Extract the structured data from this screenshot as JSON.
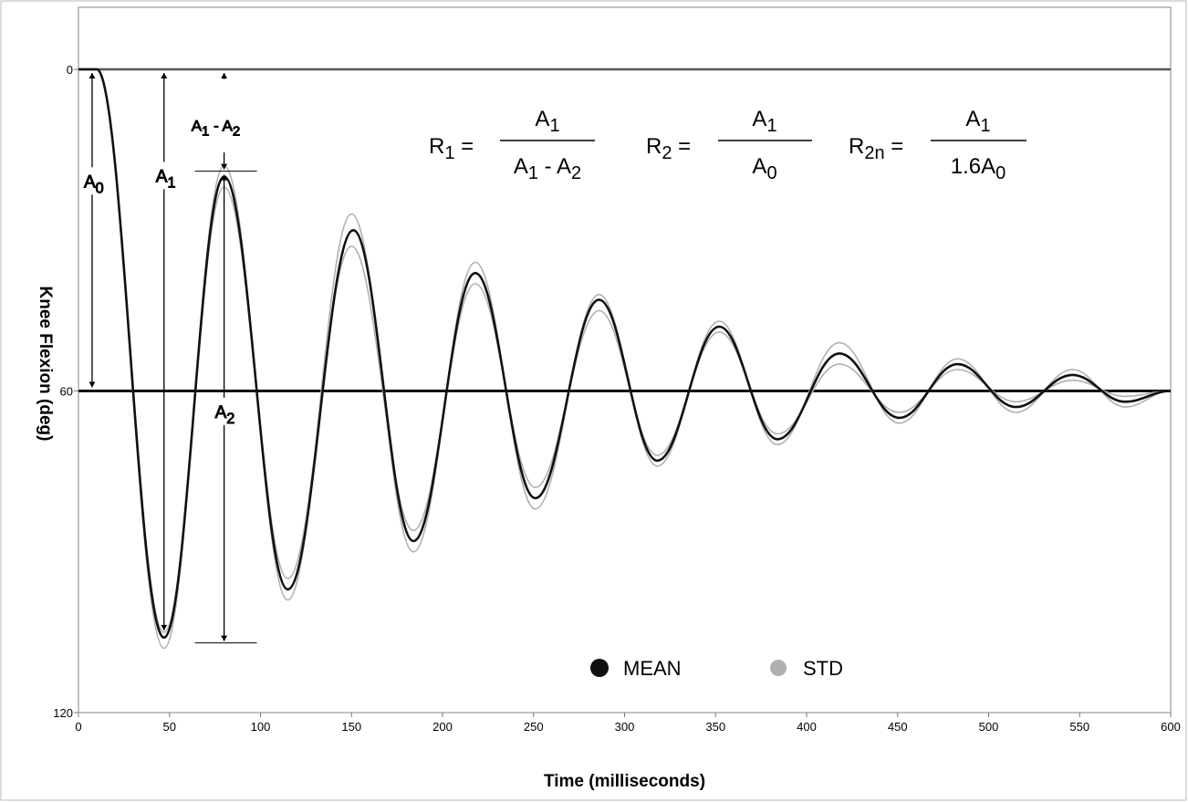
{
  "chart_data": {
    "type": "line",
    "xlabel": "Time (milliseconds)",
    "ylabel": "Knee Flexion (deg)",
    "xlim": [
      0,
      600
    ],
    "ylim": [
      120,
      0
    ],
    "x_ticks": [
      "0",
      "50",
      "100",
      "150",
      "200",
      "250",
      "300",
      "350",
      "400",
      "450",
      "500",
      "550",
      "600"
    ],
    "y_ticks": [
      "0",
      "60",
      "120"
    ],
    "reference_lines": [
      0,
      60
    ],
    "legend": {
      "placement": "bottom-center",
      "entries": [
        "MEAN",
        "STD"
      ]
    },
    "colors": {
      "mean": "#111111",
      "std": "#b0b0b0"
    },
    "series": [
      {
        "name": "MEAN",
        "x": [
          0,
          10,
          47,
          80,
          115,
          151,
          184,
          218,
          251,
          286,
          318,
          352,
          384,
          418,
          451,
          483,
          515,
          546,
          575,
          600
        ],
        "y": [
          0,
          0,
          106,
          20,
          97,
          30,
          88,
          38,
          80,
          43,
          73,
          48,
          69,
          53,
          65,
          55,
          63,
          57,
          62,
          60
        ]
      },
      {
        "name": "STD",
        "x": [
          0,
          10,
          47,
          80,
          115,
          150,
          184,
          218,
          251,
          286,
          318,
          352,
          384,
          418,
          451,
          483,
          515,
          546,
          575,
          600
        ],
        "y": [
          0,
          0,
          108,
          18,
          99,
          27,
          90,
          36,
          82,
          42,
          74,
          47,
          70,
          51,
          66,
          54,
          64,
          56,
          63,
          60
        ]
      },
      {
        "name": "STD",
        "x": [
          0,
          10,
          47,
          80,
          115,
          150,
          184,
          218,
          251,
          286,
          318,
          352,
          384,
          418,
          451,
          483,
          515,
          546,
          575,
          600
        ],
        "y": [
          0,
          0,
          105,
          22,
          95,
          33,
          86,
          40,
          78,
          45,
          72,
          49,
          68,
          55,
          64,
          56,
          62,
          58,
          61,
          60
        ]
      }
    ],
    "annotations": {
      "a0": {
        "label": "A",
        "sub": "0"
      },
      "a1": {
        "label": "A",
        "sub": "1"
      },
      "a2": {
        "label": "A",
        "sub": "2"
      },
      "a1_minus_a2": {
        "label": "A",
        "sub1": "1",
        "mid": " - A",
        "sub2": "2"
      },
      "formulas": [
        {
          "lhs": "R",
          "lhs_sub": "1",
          "eq": " =",
          "num": "A",
          "num_sub": "1",
          "den": "A",
          "den_sub": "1",
          "den_mid": " - A",
          "den_sub2": "2"
        },
        {
          "lhs": "R",
          "lhs_sub": "2",
          "eq": " =",
          "num": "A",
          "num_sub": "1",
          "den": "A",
          "den_sub": "0"
        },
        {
          "lhs": "R",
          "lhs_sub": "2n",
          "eq": " =",
          "num": "A",
          "num_sub": "1",
          "den": "1.6A",
          "den_sub": "0"
        }
      ]
    }
  }
}
